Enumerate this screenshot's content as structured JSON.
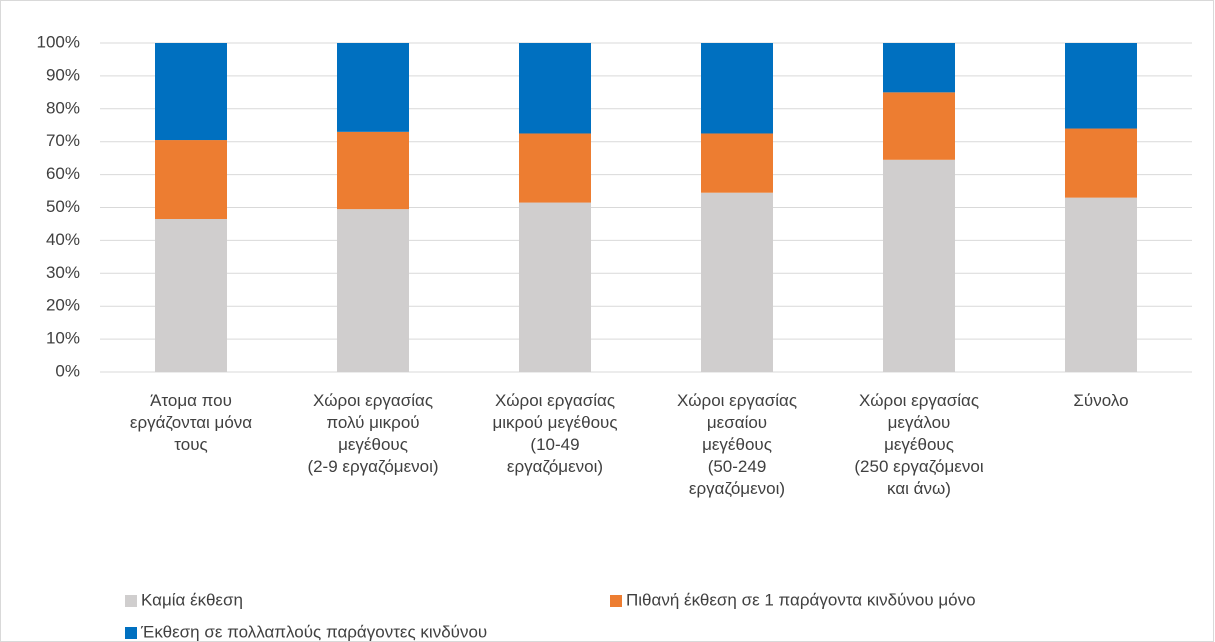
{
  "chart_data": {
    "type": "stacked_bar",
    "categories": [
      "Άτομα που\nεργάζονται μόνα\nτους",
      "Χώροι εργασίας\nπολύ μικρού\nμεγέθους\n(2-9 εργαζόμενοι)",
      "Χώροι εργασίας\nμικρού μεγέθους\n(10-49\nεργαζόμενοι)",
      "Χώροι εργασίας\nμεσαίου\nμεγέθους\n(50-249\nεργαζόμενοι)",
      "Χώροι εργασίας\nμεγάλου\nμεγέθους\n(250 εργαζόμενοι\nκαι άνω)",
      "Σύνολο"
    ],
    "series": [
      {
        "name": "Καμία έκθεση",
        "color": "#d0cece",
        "values": [
          46.5,
          49.5,
          51.5,
          54.5,
          64.5,
          53
        ]
      },
      {
        "name": "Πιθανή έκθεση σε 1 παράγοντα κινδύνου μόνο",
        "color": "#ed7d31",
        "values": [
          24,
          23.5,
          21,
          18,
          20.5,
          21
        ]
      },
      {
        "name": "Έκθεση σε πολλαπλούς παράγοντες κινδύνου",
        "color": "#0070c0",
        "values": [
          29.5,
          27,
          27.5,
          27.5,
          15,
          26
        ]
      }
    ],
    "ylim": [
      0,
      100
    ],
    "yticks": [
      {
        "value": 0,
        "label": "0%"
      },
      {
        "value": 10,
        "label": "10%"
      },
      {
        "value": 20,
        "label": "20%"
      },
      {
        "value": 30,
        "label": "30%"
      },
      {
        "value": 40,
        "label": "40%"
      },
      {
        "value": 50,
        "label": "50%"
      },
      {
        "value": 60,
        "label": "60%"
      },
      {
        "value": 70,
        "label": "70%"
      },
      {
        "value": 80,
        "label": "80%"
      },
      {
        "value": 90,
        "label": "90%"
      },
      {
        "value": 100,
        "label": "100%"
      }
    ],
    "grid": true,
    "legend": "bottom"
  }
}
